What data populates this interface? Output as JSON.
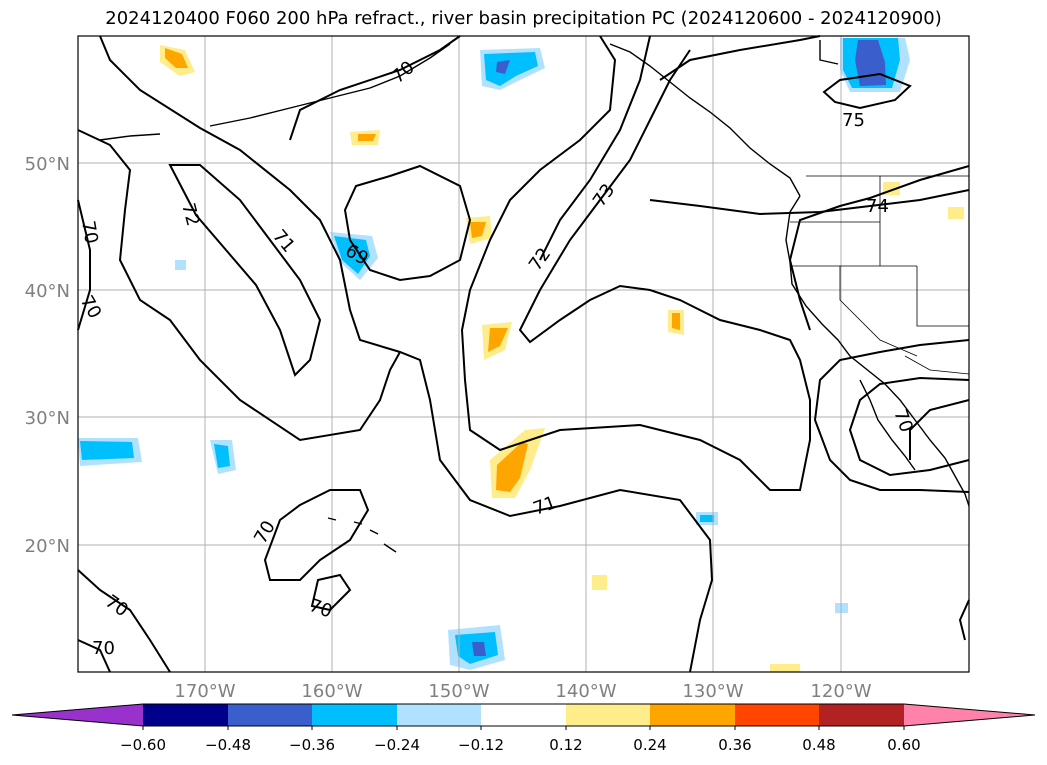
{
  "title": "2024120400 F060 200 hPa refract., river basin precipitation PC (2024120600 - 2024120900)",
  "latitude_labels": [
    "50°N",
    "40°N",
    "30°N",
    "20°N"
  ],
  "longitude_labels": [
    "170°W",
    "160°W",
    "150°W",
    "140°W",
    "130°W",
    "120°W"
  ],
  "contour_labels": [
    "70",
    "72",
    "71",
    "69",
    "72",
    "73",
    "74",
    "75",
    "70",
    "70",
    "70",
    "71",
    "70",
    "70",
    "70",
    "70"
  ],
  "colorbar": {
    "tick_labels": [
      "−0.60",
      "−0.48",
      "−0.36",
      "−0.24",
      "−0.12",
      "0.12",
      "0.24",
      "0.36",
      "0.48",
      "0.60"
    ],
    "colors": [
      "#9932cc",
      "#00008b",
      "#3a5fcd",
      "#00bfff",
      "#b0e2ff",
      "#ffffff",
      "#ffec8b",
      "#ffa500",
      "#ff4500",
      "#b22222",
      "#ff82ab"
    ]
  },
  "colors": {
    "coast": "#000000",
    "grid": "#b0b0b0",
    "axis_labels": "#808080"
  }
}
